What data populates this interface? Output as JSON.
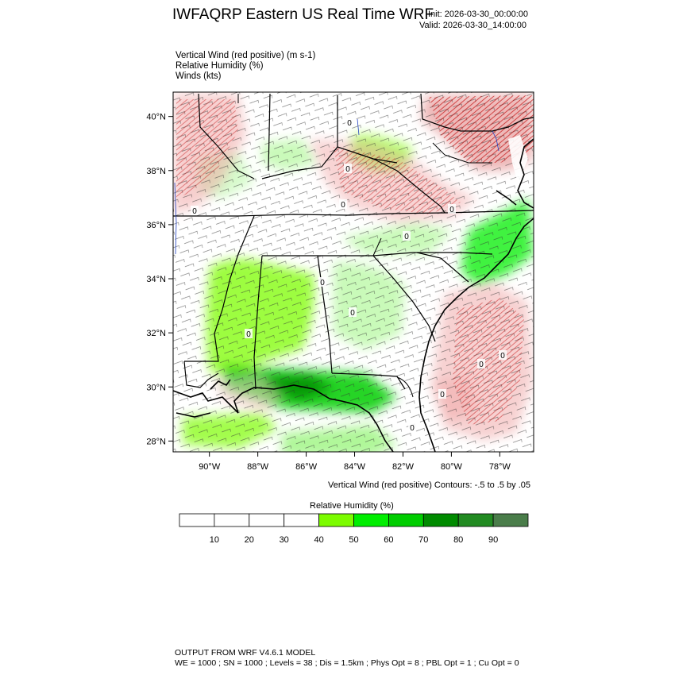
{
  "header": {
    "title": "IWFAQRP Eastern US Real Time WRF",
    "init": "Init: 2026-03-30_00:00:00",
    "valid": "Valid: 2026-03-30_14:00:00"
  },
  "variables": [
    "Vertical Wind (red positive)   (m s-1)",
    "Relative Humidity   (%)",
    "Winds   (kts)"
  ],
  "map": {
    "lat_range": [
      27.6,
      40.9
    ],
    "lon_range": [
      -91.5,
      -76.6
    ],
    "lat_ticks": [
      "40°N",
      "38°N",
      "36°N",
      "34°N",
      "32°N",
      "30°N",
      "28°N"
    ],
    "lon_ticks": [
      "90°W",
      "88°W",
      "86°W",
      "84°W",
      "82°W",
      "80°W",
      "78°W"
    ],
    "contour_labels": [
      "0",
      "0",
      "0",
      "0",
      "0",
      "0",
      "0",
      "0",
      "0",
      "0",
      "0",
      "0",
      "0"
    ]
  },
  "contour_note": "Vertical Wind (red positive) Contours: -.5 to .5 by .05",
  "colorbar": {
    "title": "Relative Humidity  (%)",
    "labels": [
      "10",
      "20",
      "30",
      "40",
      "50",
      "60",
      "70",
      "80",
      "90"
    ],
    "colors": [
      "#ffffff",
      "#ffffff",
      "#ffffff",
      "#ffffff",
      "#7cfc00",
      "#00ee00",
      "#00cd00",
      "#008b00",
      "#228b22",
      "#4a7d4a"
    ]
  },
  "footer": {
    "line1": "OUTPUT FROM WRF V4.6.1 MODEL",
    "line2": "WE = 1000 ; SN = 1000 ; Levels = 38 ; Dis = 1.5km ; Phys Opt = 8 ; PBL Opt = 1 ; Cu Opt = 0"
  }
}
